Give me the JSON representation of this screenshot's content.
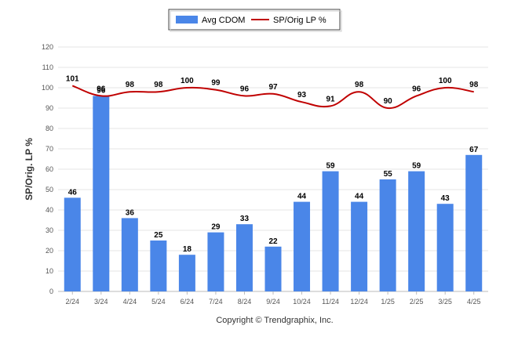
{
  "chart_data": {
    "type": "bar",
    "categories": [
      "2/24",
      "3/24",
      "4/24",
      "5/24",
      "6/24",
      "7/24",
      "8/24",
      "9/24",
      "10/24",
      "11/24",
      "12/24",
      "1/25",
      "2/25",
      "3/25",
      "4/25"
    ],
    "series": [
      {
        "name": "Avg CDOM",
        "type": "bar",
        "color": "#4a86e8",
        "values": [
          46,
          96,
          36,
          25,
          18,
          29,
          33,
          22,
          44,
          59,
          44,
          55,
          59,
          43,
          67
        ]
      },
      {
        "name": "SP/Orig LP %",
        "type": "line",
        "color": "#c00000",
        "values": [
          101,
          96,
          98,
          98,
          100,
          99,
          96,
          97,
          93,
          91,
          98,
          90,
          96,
          100,
          98
        ]
      }
    ],
    "title": "",
    "xlabel": "",
    "ylabel": "SP/Orig. LP %",
    "ylim": [
      0,
      120
    ],
    "yticks": [
      0,
      10,
      20,
      30,
      40,
      50,
      60,
      70,
      80,
      90,
      100,
      110,
      120
    ],
    "grid": true,
    "legend_position": "top-center"
  },
  "footer": {
    "copyright": "Copyright © Trendgraphix, Inc."
  }
}
